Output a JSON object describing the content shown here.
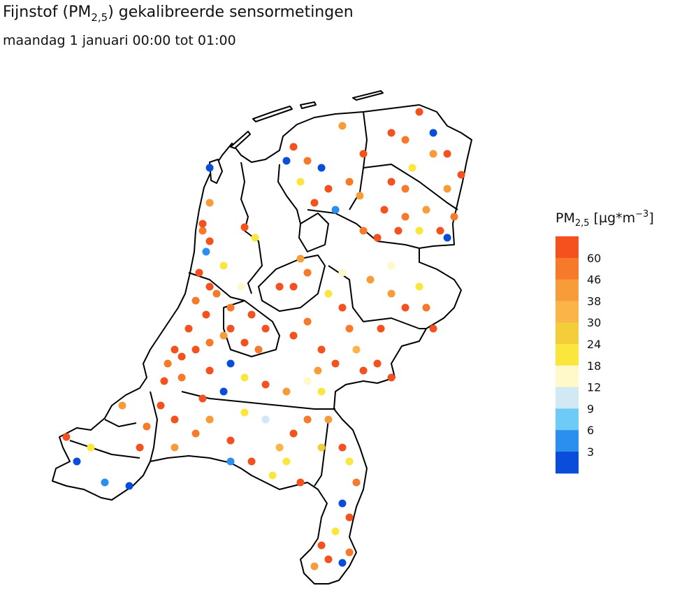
{
  "title": [
    "Fijnstof (PM",
    "2,5",
    ") gekalibreerde sensormetingen"
  ],
  "subtitle": "maandag 1 januari 00:00 tot 01:00",
  "legend": {
    "title": [
      "PM",
      "2,5",
      " [µg*m",
      "−3",
      "]"
    ],
    "ticks": [
      60,
      46,
      38,
      30,
      24,
      18,
      12,
      9,
      6,
      3
    ],
    "colors": [
      "#f4511e",
      "#f7792a",
      "#f89c3a",
      "#fab447",
      "#f3cd3a",
      "#fbe63e",
      "#fff8c8",
      "#d0e9f5",
      "#6ecbf8",
      "#2b8ff0",
      "#0a4ddb"
    ]
  },
  "sensors": {
    "lon": [
      4.744,
      4.838,
      4.713,
      4.806,
      4.9,
      4.65,
      4.525,
      4.463,
      4.588,
      4.713,
      4.838,
      4.963,
      4.431,
      4.588,
      4.838,
      5.025,
      5.15,
      5.275,
      5.338,
      5.213,
      5.025,
      5.119,
      4.838,
      4.775,
      4.806,
      4.963,
      5.588,
      5.713,
      5.838,
      5.963,
      5.806,
      6.025,
      6.088,
      6.15,
      6.213,
      6.338,
      5.588,
      5.713,
      5.9,
      6.025,
      5.463,
      5.65,
      6.463,
      6.588,
      6.775,
      6.838,
      6.713,
      6.369,
      6.463,
      6.275,
      5.588,
      5.713,
      5.838,
      5.9,
      6.025,
      5.65,
      5.775,
      5.525,
      6.088,
      5.963,
      6.213,
      6.181,
      6.463,
      6.588,
      6.713,
      6.838,
      6.963,
      6.65,
      6.463,
      6.588,
      6.963,
      7.088,
      6.838,
      6.4,
      6.588,
      6.775,
      6.9,
      6.525,
      6.713,
      6.963,
      6.213,
      6.338,
      7.025,
      4.838,
      5.15,
      5.244,
      4.838,
      4.775,
      3.556,
      3.65,
      3.9,
      3.775,
      4.119,
      4.213,
      4.056,
      4.275,
      4.525,
      4.713,
      4.838,
      5.025,
      5.15,
      5.338,
      5.463,
      5.525,
      5.588,
      5.713,
      5.838,
      5.213,
      5.025,
      4.525,
      5.4,
      5.65,
      5.9,
      4.775,
      4.963,
      4.4,
      6.025,
      6.088,
      6.15,
      6.025,
      6.088,
      5.963,
      5.9,
      6.025,
      5.775,
      5.838,
      6.088,
      5.15,
      5.338,
      5.525,
      5.713,
      5.838,
      6.463,
      5.025
    ],
    "lat": [
      52.452,
      52.372,
      52.292,
      52.212,
      52.332,
      52.132,
      52.012,
      51.932,
      51.972,
      52.012,
      52.052,
      52.092,
      51.832,
      51.852,
      51.892,
      52.132,
      52.052,
      52.012,
      52.132,
      52.212,
      52.252,
      52.372,
      52.632,
      52.692,
      52.572,
      52.492,
      52.092,
      52.172,
      52.012,
      51.932,
      51.892,
      52.252,
      52.132,
      52.012,
      51.892,
      51.932,
      52.372,
      52.452,
      52.332,
      52.452,
      52.372,
      52.532,
      52.332,
      52.252,
      52.252,
      52.132,
      52.372,
      52.132,
      52.492,
      52.412,
      53.172,
      53.092,
      53.052,
      52.932,
      53.292,
      52.972,
      52.852,
      53.092,
      52.972,
      52.812,
      53.132,
      52.892,
      53.252,
      53.212,
      53.372,
      53.132,
      53.132,
      53.052,
      52.972,
      52.932,
      52.932,
      53.012,
      53.252,
      52.812,
      52.772,
      52.812,
      52.692,
      52.692,
      52.692,
      52.652,
      52.692,
      52.652,
      52.772,
      53.052,
      52.712,
      52.652,
      52.852,
      52.732,
      51.512,
      51.372,
      51.252,
      51.452,
      51.232,
      51.452,
      51.692,
      51.572,
      51.612,
      51.532,
      51.612,
      51.492,
      51.652,
      51.612,
      51.452,
      51.372,
      51.532,
      51.612,
      51.452,
      51.372,
      51.372,
      51.452,
      51.292,
      51.252,
      51.612,
      51.732,
      51.772,
      51.692,
      51.452,
      51.372,
      51.252,
      51.132,
      51.052,
      50.972,
      50.812,
      50.792,
      50.772,
      50.892,
      50.852,
      51.852,
      51.812,
      51.772,
      51.832,
      51.772,
      51.852,
      51.932
    ],
    "values": [
      65,
      65,
      50,
      65,
      50,
      65,
      65,
      50,
      65,
      65,
      50,
      40,
      65,
      50,
      65,
      65,
      65,
      50,
      65,
      65,
      50,
      15,
      65,
      50,
      5,
      20,
      65,
      50,
      65,
      65,
      40,
      65,
      50,
      35,
      65,
      65,
      65,
      50,
      20,
      15,
      65,
      40,
      40,
      65,
      50,
      65,
      20,
      65,
      15,
      40,
      65,
      50,
      2,
      65,
      40,
      20,
      65,
      2,
      50,
      5,
      65,
      40,
      65,
      50,
      65,
      40,
      65,
      20,
      65,
      50,
      40,
      65,
      2,
      65,
      50,
      40,
      65,
      65,
      20,
      2,
      50,
      65,
      50,
      2,
      65,
      20,
      40,
      65,
      65,
      2,
      5,
      20,
      2,
      65,
      40,
      50,
      65,
      50,
      40,
      65,
      20,
      10,
      30,
      20,
      65,
      50,
      25,
      65,
      5,
      40,
      20,
      65,
      40,
      65,
      2,
      65,
      65,
      20,
      50,
      2,
      65,
      20,
      65,
      2,
      40,
      65,
      50,
      20,
      65,
      40,
      15,
      20,
      65,
      2
    ]
  }
}
